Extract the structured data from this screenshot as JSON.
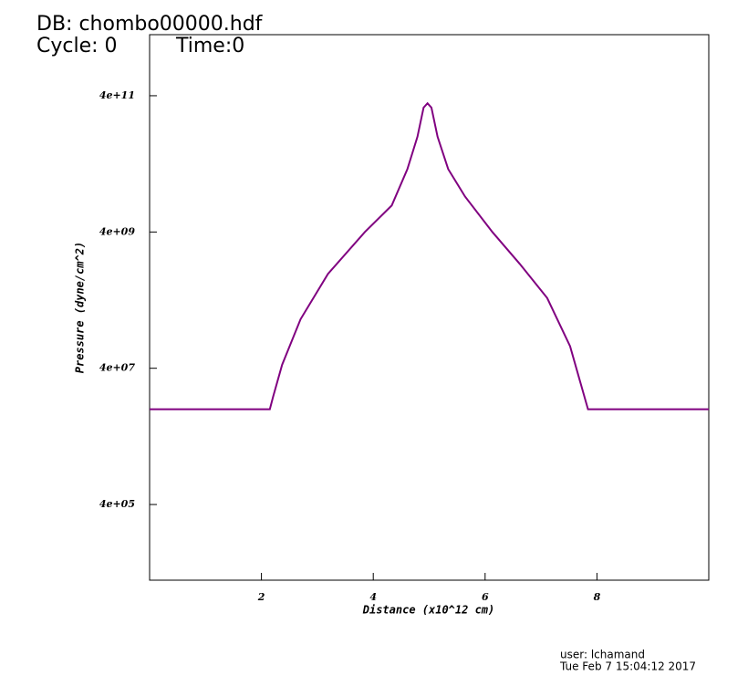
{
  "chart_data": {
    "type": "line",
    "db_label": "DB: chombo00000.hdf",
    "cycle_label": "Cycle: 0",
    "time_label": "Time:0",
    "xlabel": "Distance (x10^12 cm)",
    "ylabel": "Pressure (dyne/cm^2)",
    "user_label": "user: lchamand",
    "date_label": "Tue Feb  7 15:04:12 2017",
    "xlim": [
      0,
      10
    ],
    "xticks": [
      2,
      4,
      6,
      8
    ],
    "ylim": [
      31000,
      3150000000000
    ],
    "yscale": "log",
    "yticks": [
      {
        "value": 400000,
        "label": "4e+05"
      },
      {
        "value": 40000000,
        "label": "4e+07"
      },
      {
        "value": 4000000000,
        "label": "4e+09"
      },
      {
        "value": 400000000000,
        "label": "4e+11"
      }
    ],
    "series": [
      {
        "color": "#800080",
        "x": [
          0,
          2.15,
          2.21,
          2.37,
          2.7,
          3.19,
          3.85,
          4.33,
          4.61,
          4.79,
          4.9,
          4.97,
          5.04,
          5.15,
          5.34,
          5.64,
          6.13,
          6.62,
          7.11,
          7.52,
          7.84,
          10
        ],
        "values": [
          10000000,
          10000000,
          15400000,
          45000000,
          210000000,
          970000000,
          4000000000,
          9800000000,
          33500000000,
          100000000000,
          268000000000,
          310000000000,
          268000000000,
          100000000000,
          33500000000,
          13300000000,
          4000000000,
          1360000000,
          430000000,
          84000000,
          10000000,
          10000000
        ]
      }
    ]
  }
}
